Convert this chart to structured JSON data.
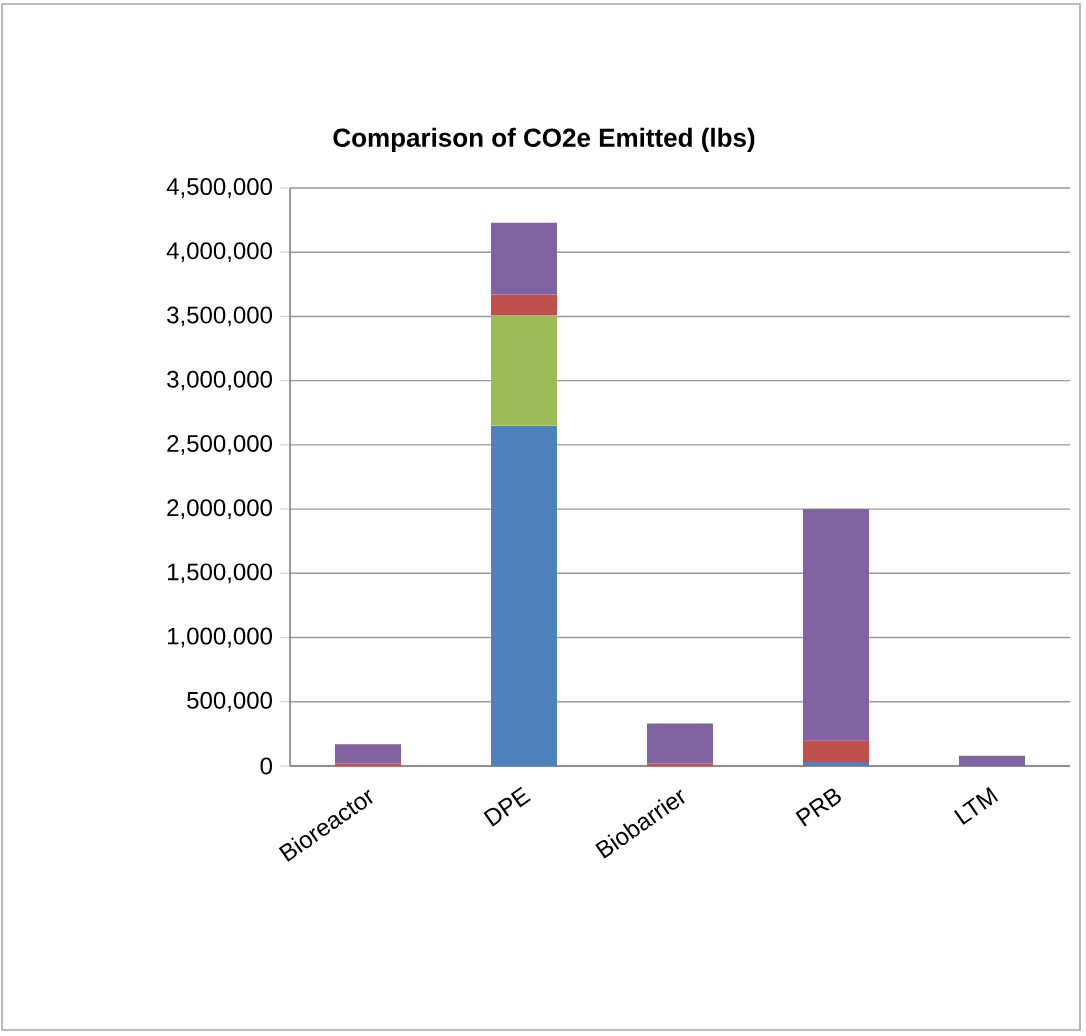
{
  "chart_data": {
    "type": "bar",
    "title": "Comparison of CO2e Emitted (lbs)",
    "stacked": true,
    "grid": "y",
    "categories": [
      "Bioreactor",
      "DPE",
      "Biobarrier",
      "PRB",
      "LTM"
    ],
    "series": [
      {
        "color": "#4f81bd",
        "values": [
          0,
          2650000,
          0,
          30000,
          0
        ]
      },
      {
        "color": "#9bbb59",
        "values": [
          0,
          860000,
          0,
          0,
          0
        ]
      },
      {
        "color": "#c0504d",
        "values": [
          20000,
          160000,
          20000,
          170000,
          0
        ]
      },
      {
        "color": "#8064a2",
        "values": [
          150000,
          560000,
          310000,
          1800000,
          80000
        ]
      }
    ],
    "ylim": [
      0,
      4500000
    ],
    "yticks": [
      0,
      {
        "value": 500000,
        "label": "500,000"
      },
      {
        "value": 1000000,
        "label": "1,000,000"
      },
      {
        "value": 1500000,
        "label": "1,500,000"
      },
      {
        "value": 2000000,
        "label": "2,000,000"
      },
      {
        "value": 2500000,
        "label": "2,500,000"
      },
      {
        "value": 3000000,
        "label": "3,000,000"
      },
      {
        "value": 3500000,
        "label": "3,500,000"
      },
      {
        "value": 4000000,
        "label": "4,000,000"
      },
      {
        "value": 4500000,
        "label": "4,500,000"
      }
    ]
  }
}
